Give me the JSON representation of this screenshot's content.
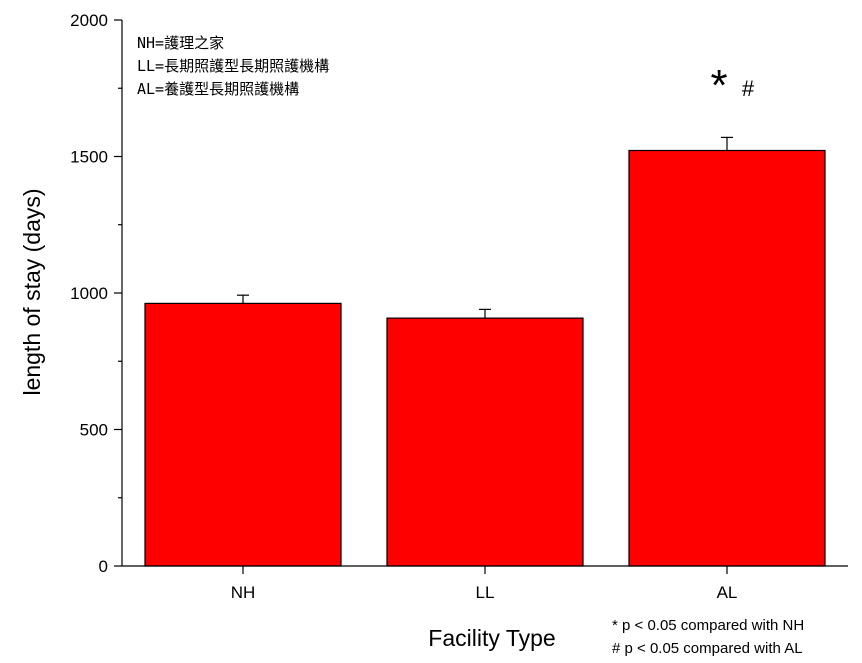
{
  "chart_data": {
    "type": "bar",
    "categories": [
      "NH",
      "LL",
      "AL"
    ],
    "values": [
      962,
      908,
      1522
    ],
    "errors": [
      30,
      32,
      48
    ],
    "bar_color": "#ff0000",
    "xlabel": "Facility Type",
    "ylabel": "length of stay (days)",
    "ylim": [
      0,
      2000
    ],
    "yticks": [
      0,
      500,
      1000,
      1500,
      2000
    ],
    "grid": false,
    "legend_text": [
      "NH=護理之家",
      "LL=長期照護型長期照護機構",
      "AL=養護型長期照護機構"
    ],
    "significance": {
      "category": "AL",
      "star": "*",
      "hash": "#"
    },
    "footnotes": [
      "* p < 0.05 compared with NH",
      "# p < 0.05 compared with AL"
    ]
  }
}
